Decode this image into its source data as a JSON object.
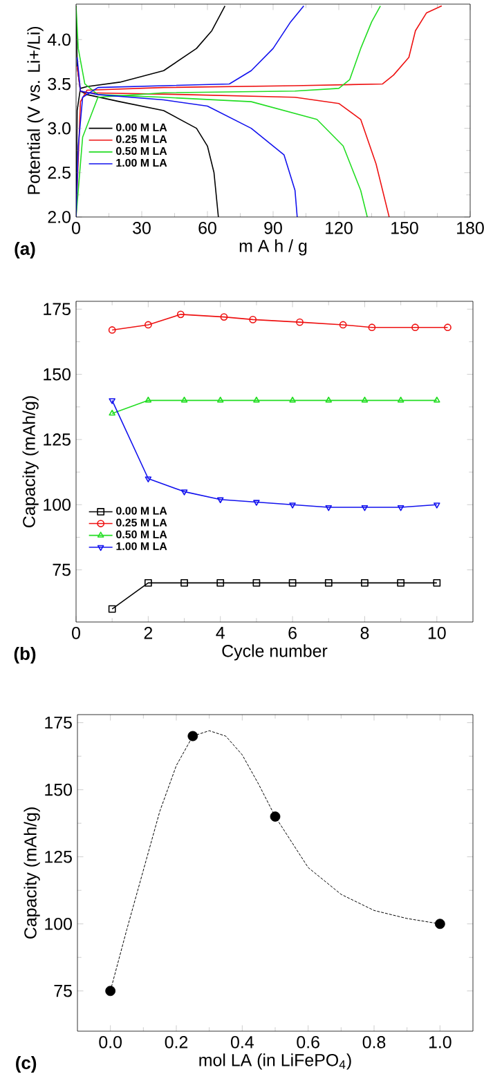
{
  "chart_data": [
    {
      "type": "line",
      "xlabel": "m A h / g",
      "ylabel": "Potential (V vs. Li+/Li)",
      "annotations": [
        "(a)"
      ],
      "xlim": [
        0,
        180
      ],
      "ylim": [
        2.0,
        4.4
      ],
      "xticks": [
        0,
        30,
        60,
        90,
        120,
        150,
        180
      ],
      "yticks": [
        {
          "value": 2.0,
          "label": "2.0"
        },
        {
          "value": 2.5,
          "label": "2.5"
        },
        {
          "value": 3.0,
          "label": "3.0"
        },
        {
          "value": 3.5,
          "label": "3.5"
        },
        {
          "value": 4.0,
          "label": "4.0"
        }
      ],
      "legend": "bottom left",
      "marker": "none",
      "series": [
        {
          "name": "0.00 M LA",
          "color": "#000000",
          "x": [
            0,
            0.5,
            2,
            5,
            20,
            40,
            55,
            62,
            68
          ],
          "values": [
            2.0,
            3.2,
            3.45,
            3.47,
            3.52,
            3.65,
            3.9,
            4.1,
            4.38
          ]
        },
        {
          "color": "#000000",
          "x": [
            0,
            0.5,
            2,
            5,
            20,
            40,
            55,
            60,
            63,
            65
          ],
          "values": [
            4.38,
            3.7,
            3.42,
            3.38,
            3.3,
            3.2,
            3.0,
            2.8,
            2.5,
            2.0
          ]
        },
        {
          "name": "0.25 M LA",
          "color": "#ee1111",
          "x": [
            0,
            2,
            5,
            40,
            100,
            140,
            145,
            152,
            155,
            160,
            167
          ],
          "values": [
            2.0,
            3.3,
            3.43,
            3.46,
            3.48,
            3.5,
            3.6,
            3.8,
            4.1,
            4.3,
            4.38
          ]
        },
        {
          "color": "#ee1111",
          "x": [
            0.5,
            2,
            5,
            50,
            100,
            120,
            130,
            137,
            143
          ],
          "values": [
            3.7,
            3.42,
            3.4,
            3.38,
            3.35,
            3.28,
            3.1,
            2.6,
            2.0
          ]
        },
        {
          "name": "0.50 M LA",
          "color": "#22dd22",
          "x": [
            0,
            3,
            10,
            40,
            100,
            120,
            125,
            130,
            135,
            139
          ],
          "values": [
            2.0,
            2.9,
            3.35,
            3.4,
            3.42,
            3.45,
            3.55,
            3.9,
            4.2,
            4.38
          ]
        },
        {
          "color": "#22dd22",
          "x": [
            0,
            1,
            4,
            10,
            40,
            80,
            110,
            122,
            130,
            133
          ],
          "values": [
            4.38,
            3.9,
            3.5,
            3.38,
            3.35,
            3.3,
            3.1,
            2.8,
            2.3,
            2.0
          ]
        },
        {
          "name": "1.00 M LA",
          "color": "#1111ee",
          "x": [
            0,
            1,
            3,
            10,
            40,
            70,
            80,
            90,
            98,
            104
          ],
          "values": [
            2.0,
            2.8,
            3.35,
            3.46,
            3.48,
            3.5,
            3.65,
            3.9,
            4.2,
            4.38
          ]
        },
        {
          "color": "#1111ee",
          "x": [
            0.5,
            2,
            10,
            40,
            60,
            80,
            95,
            100,
            101
          ],
          "values": [
            3.8,
            3.42,
            3.38,
            3.32,
            3.25,
            3.0,
            2.7,
            2.3,
            2.0
          ]
        }
      ]
    },
    {
      "type": "line",
      "xlabel": "Cycle number",
      "ylabel": "Capacity (mAh/g)",
      "annotations": [
        "(b)"
      ],
      "xlim": [
        0,
        11
      ],
      "ylim": [
        55,
        178
      ],
      "xticks": [
        0,
        2,
        4,
        6,
        8,
        10
      ],
      "yticks": [
        75,
        100,
        125,
        150,
        175
      ],
      "legend": "bottom left",
      "series": [
        {
          "name": "0.00 M LA",
          "color": "#000000",
          "marker": "square",
          "x": [
            1,
            2,
            3,
            4,
            5,
            6,
            7,
            8,
            9,
            10
          ],
          "values": [
            60,
            70,
            70,
            70,
            70,
            70,
            70,
            70,
            70,
            70
          ]
        },
        {
          "name": "0.25 M LA",
          "color": "#ee1111",
          "marker": "circle",
          "x": [
            1,
            2,
            2.9,
            4.1,
            4.9,
            6.2,
            7.4,
            8.2,
            9.4,
            10.3
          ],
          "values": [
            167,
            169,
            173,
            172,
            171,
            170,
            169,
            168,
            168,
            168
          ]
        },
        {
          "name": "0.50 M LA",
          "color": "#22dd22",
          "marker": "triangle",
          "x": [
            1,
            2,
            3,
            4,
            5,
            6,
            7,
            8,
            9,
            10
          ],
          "values": [
            135,
            140,
            140,
            140,
            140,
            140,
            140,
            140,
            140,
            140
          ]
        },
        {
          "name": "1.00 M LA",
          "color": "#1111ee",
          "marker": "triangle-down",
          "x": [
            1,
            2,
            3,
            4,
            5,
            6,
            7,
            8,
            9,
            10
          ],
          "values": [
            140,
            110,
            105,
            102,
            101,
            100,
            99,
            99,
            99,
            100
          ]
        }
      ]
    },
    {
      "type": "scatter",
      "xlabel": "mol LA (in LiFePO$_{4}$)",
      "ylabel": "Capacity (mAh/g)",
      "annotations": [
        "(c)"
      ],
      "xlim": [
        -0.1,
        1.1
      ],
      "ylim": [
        60,
        178
      ],
      "xticks": [
        {
          "value": 0,
          "label": "0.0"
        },
        {
          "value": 0.2,
          "label": "0.2"
        },
        {
          "value": 0.4,
          "label": "0.4"
        },
        {
          "value": 0.6,
          "label": "0.6"
        },
        {
          "value": 0.8,
          "label": "0.8"
        },
        {
          "value": 1.0,
          "label": "1.0"
        }
      ],
      "yticks": [
        75,
        100,
        125,
        150,
        175
      ],
      "marker": "circle",
      "series": [
        {
          "color": "#000000",
          "x": [
            0,
            0.25,
            0.5,
            1.0
          ],
          "values": [
            75,
            170,
            140,
            100
          ]
        },
        {
          "type": "line",
          "line_style": "dashed",
          "marker": "none",
          "color": "#000000",
          "x": [
            0,
            0.05,
            0.1,
            0.15,
            0.2,
            0.25,
            0.3,
            0.35,
            0.4,
            0.45,
            0.5,
            0.6,
            0.7,
            0.8,
            0.9,
            1.0
          ],
          "values": [
            75,
            98,
            120,
            142,
            159,
            170,
            172,
            170,
            163,
            152,
            140,
            121,
            111,
            105,
            102,
            100
          ]
        }
      ]
    }
  ]
}
